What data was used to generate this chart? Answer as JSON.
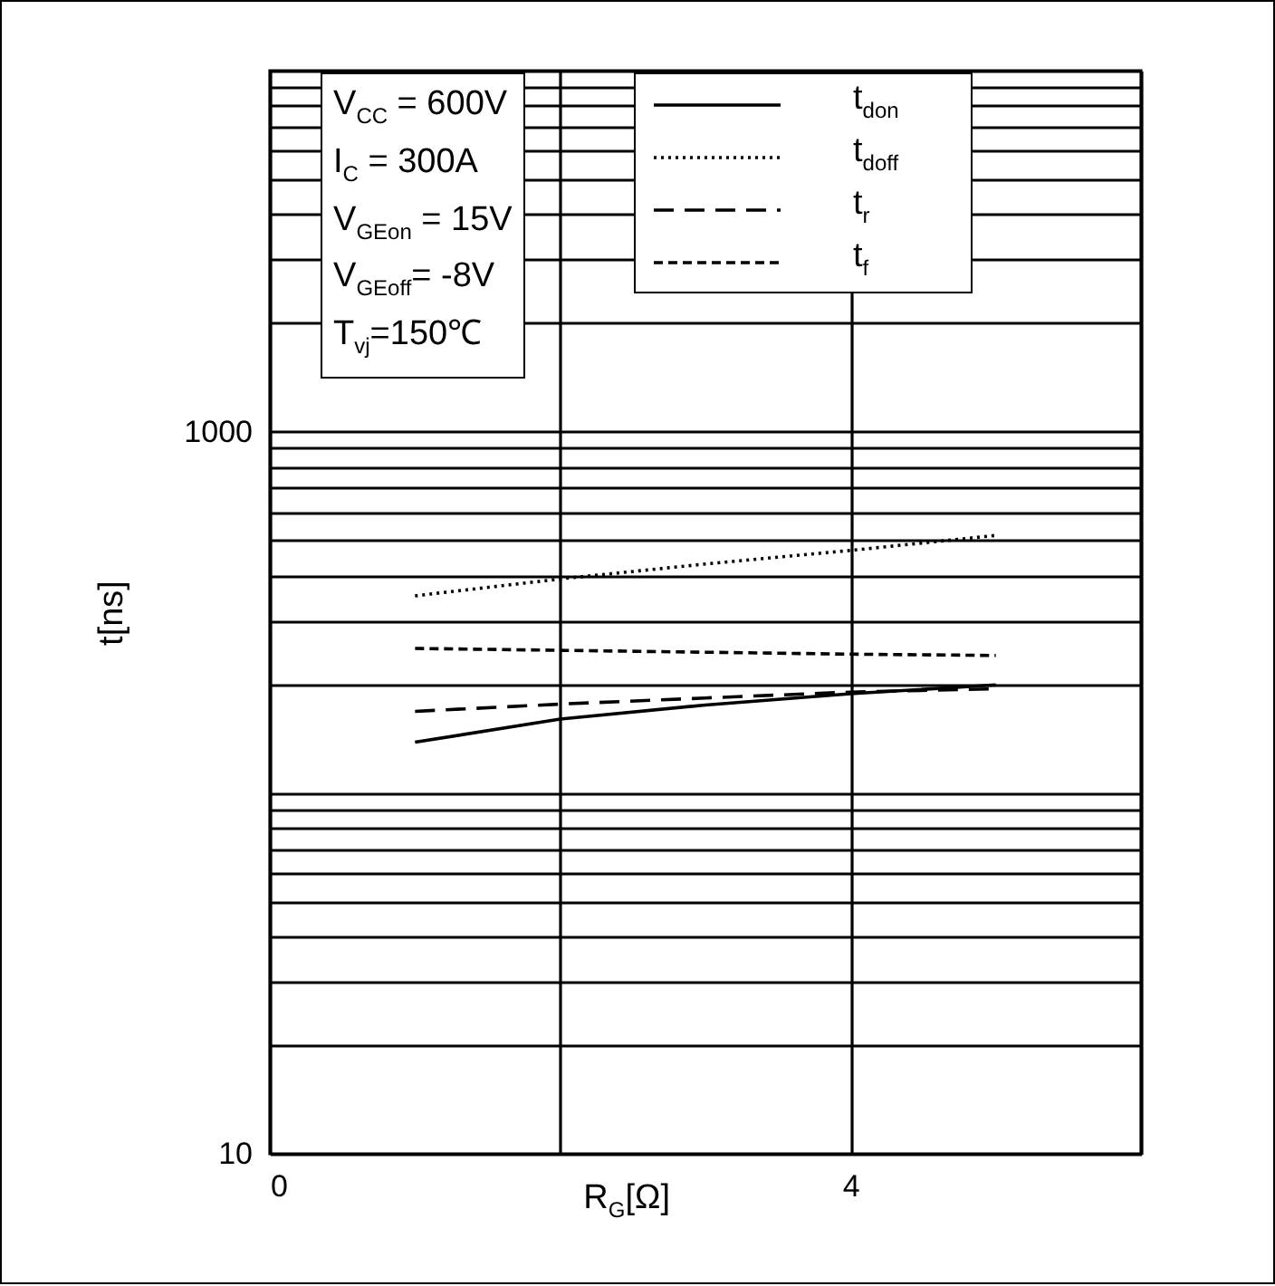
{
  "chart_data": {
    "type": "line",
    "xlabel": "R$_{G}$[Ω]",
    "ylabel": "t[ns]",
    "x": [
      1,
      2,
      3,
      4,
      5
    ],
    "series": [
      {
        "name": "t$_{don}$",
        "color": "#000000",
        "line_style": "solid",
        "values": [
          138,
          160,
          175,
          188,
          199
        ]
      },
      {
        "name": "t$_{doff}$",
        "color": "#000000",
        "line_style": "dotted",
        "values": [
          351,
          391,
          430,
          469,
          516
        ]
      },
      {
        "name": "t$_{r}$",
        "color": "#000000",
        "line_style": "dashed",
        "values": [
          168,
          176,
          183,
          190,
          194
        ]
      },
      {
        "name": "t$_{f}$",
        "color": "#000000",
        "line_style": "dashed",
        "values": [
          251,
          248,
          245,
          242,
          240
        ]
      }
    ],
    "annotations": [
      "V$_{CC}$ = 600V",
      "I$_{C}$ = 300A",
      "V$_{GEon}$ = 15V",
      "V$_{GEoff}$= -8V",
      "T$_{vj}$=150℃"
    ],
    "log": "y",
    "grid": true,
    "legend": "top right",
    "marker": "none",
    "xlim": [
      0,
      6
    ],
    "xticks": [
      0,
      {
        "value": 2,
        "label": null
      },
      4,
      {
        "value": 6,
        "label": null
      }
    ],
    "ylim": [
      10,
      10000
    ],
    "yticks": [
      10,
      {
        "value": 20,
        "label": null
      },
      {
        "value": 30,
        "label": null
      },
      {
        "value": 40,
        "label": null
      },
      {
        "value": 50,
        "label": null
      },
      {
        "value": 60,
        "label": null
      },
      {
        "value": 70,
        "label": null
      },
      {
        "value": 80,
        "label": null
      },
      {
        "value": 90,
        "label": null
      },
      {
        "value": 100,
        "label": null
      },
      {
        "value": 200,
        "label": null
      },
      {
        "value": 300,
        "label": null
      },
      {
        "value": 400,
        "label": null
      },
      {
        "value": 500,
        "label": null
      },
      {
        "value": 600,
        "label": null
      },
      {
        "value": 700,
        "label": null
      },
      {
        "value": 800,
        "label": null
      },
      {
        "value": 900,
        "label": null
      },
      1000,
      {
        "value": 2000,
        "label": null
      },
      {
        "value": 3000,
        "label": null
      },
      {
        "value": 4000,
        "label": null
      },
      {
        "value": 5000,
        "label": null
      },
      {
        "value": 6000,
        "label": null
      },
      {
        "value": 7000,
        "label": null
      },
      {
        "value": 8000,
        "label": null
      },
      {
        "value": 9000,
        "label": null
      },
      {
        "value": 10000,
        "label": null
      }
    ]
  }
}
